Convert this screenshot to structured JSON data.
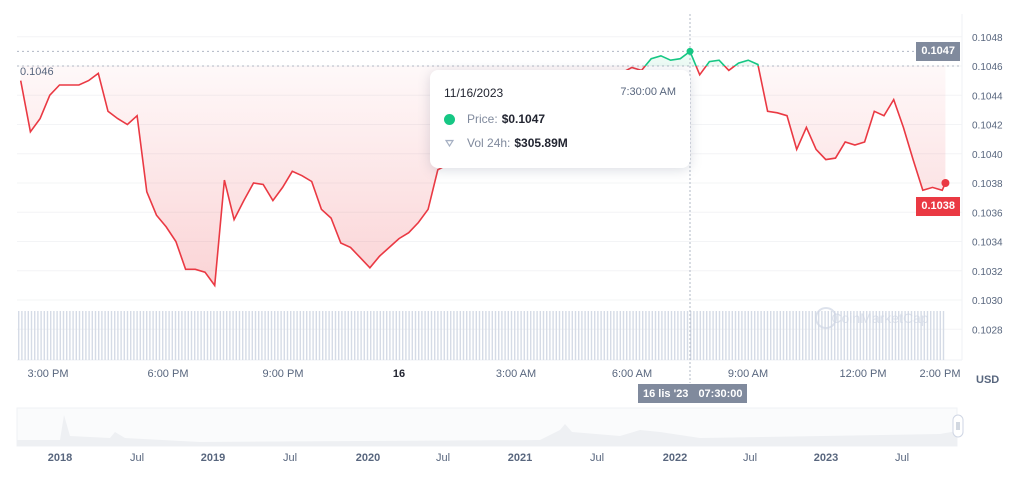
{
  "colors": {
    "up": "#16c784",
    "down": "#ea3943",
    "badge_gray": "#808a9d",
    "volume": "#cfd6e4"
  },
  "tooltip": {
    "date": "11/16/2023",
    "time": "7:30:00 AM",
    "price_label": "Price:",
    "price": "$0.1047",
    "vol_label": "Vol 24h:",
    "vol": "$305.89M",
    "price_icon": "green-dot-icon",
    "vol_icon": "volume-shield-icon"
  },
  "crosshair": {
    "date_badge": "16 lis '23",
    "time_badge": "07:30:00",
    "price_badge": "0.1047"
  },
  "current_price_badge": "0.1038",
  "baseline_label": "0.1046",
  "currency": "USD",
  "watermark": "CoinMarketCap",
  "x_ticks": [
    "3:00 PM",
    "6:00 PM",
    "9:00 PM",
    "16",
    "3:00 AM",
    "6:00 AM",
    "9:00 AM",
    "12:00 PM",
    "2:00 PM"
  ],
  "y_ticks": [
    "0.1048",
    "0.1046",
    "0.1044",
    "0.1042",
    "0.1040",
    "0.1038",
    "0.1036",
    "0.1034",
    "0.1032",
    "0.1030",
    "0.1028"
  ],
  "navigator_ticks": [
    "2018",
    "Jul",
    "2019",
    "Jul",
    "2020",
    "Jul",
    "2021",
    "Jul",
    "2022",
    "Jul",
    "2023",
    "Jul"
  ],
  "chart_data": {
    "type": "line",
    "baseline": 0.1046,
    "ylim": [
      0.1027,
      0.1049
    ],
    "points": [
      [
        "11/15 14:15",
        0.1045
      ],
      [
        "11/15 14:30",
        0.10415
      ],
      [
        "11/15 14:45",
        0.10424
      ],
      [
        "11/15 15:00",
        0.1044
      ],
      [
        "11/15 15:15",
        0.10447
      ],
      [
        "11/15 15:30",
        0.10447
      ],
      [
        "11/15 15:45",
        0.10447
      ],
      [
        "11/15 16:00",
        0.1045
      ],
      [
        "11/15 16:15",
        0.10455
      ],
      [
        "11/15 16:30",
        0.10429
      ],
      [
        "11/15 16:45",
        0.10424
      ],
      [
        "11/15 17:00",
        0.1042
      ],
      [
        "11/15 17:15",
        0.10426
      ],
      [
        "11/15 17:30",
        0.10374
      ],
      [
        "11/15 17:45",
        0.10358
      ],
      [
        "11/15 18:00",
        0.1035
      ],
      [
        "11/15 18:15",
        0.1034
      ],
      [
        "11/15 18:30",
        0.10321
      ],
      [
        "11/15 18:45",
        0.10321
      ],
      [
        "11/15 19:00",
        0.10319
      ],
      [
        "11/15 19:15",
        0.1031
      ],
      [
        "11/15 19:30",
        0.10382
      ],
      [
        "11/15 19:45",
        0.10355
      ],
      [
        "11/15 20:00",
        0.10368
      ],
      [
        "11/15 20:15",
        0.1038
      ],
      [
        "11/15 20:30",
        0.10379
      ],
      [
        "11/15 20:45",
        0.10368
      ],
      [
        "11/15 21:00",
        0.10377
      ],
      [
        "11/15 21:15",
        0.10388
      ],
      [
        "11/15 21:30",
        0.10385
      ],
      [
        "11/15 21:45",
        0.10381
      ],
      [
        "11/15 22:00",
        0.10362
      ],
      [
        "11/15 22:15",
        0.10356
      ],
      [
        "11/15 22:30",
        0.10339
      ],
      [
        "11/15 22:45",
        0.10336
      ],
      [
        "11/15 23:00",
        0.10329
      ],
      [
        "11/15 23:15",
        0.10322
      ],
      [
        "11/15 23:30",
        0.1033
      ],
      [
        "11/15 23:45",
        0.10336
      ],
      [
        "11/16 00:00",
        0.10342
      ],
      [
        "11/16 00:15",
        0.10346
      ],
      [
        "11/16 00:30",
        0.10353
      ],
      [
        "11/16 00:45",
        0.10362
      ],
      [
        "11/16 01:00",
        0.10389
      ],
      [
        "11/16 06:00",
        0.10459
      ],
      [
        "11/16 06:15",
        0.10457
      ],
      [
        "11/16 06:30",
        0.10465
      ],
      [
        "11/16 06:45",
        0.10467
      ],
      [
        "11/16 07:00",
        0.10464
      ],
      [
        "11/16 07:15",
        0.10465
      ],
      [
        "11/16 07:30",
        0.1047
      ],
      [
        "11/16 07:45",
        0.10454
      ],
      [
        "11/16 08:00",
        0.10463
      ],
      [
        "11/16 08:15",
        0.10464
      ],
      [
        "11/16 08:30",
        0.10457
      ],
      [
        "11/16 08:45",
        0.10462
      ],
      [
        "11/16 09:00",
        0.10464
      ],
      [
        "11/16 09:15",
        0.10461
      ],
      [
        "11/16 09:30",
        0.10429
      ],
      [
        "11/16 09:45",
        0.10428
      ],
      [
        "11/16 10:00",
        0.10426
      ],
      [
        "11/16 10:15",
        0.10403
      ],
      [
        "11/16 10:30",
        0.10418
      ],
      [
        "11/16 10:45",
        0.10403
      ],
      [
        "11/16 11:00",
        0.10396
      ],
      [
        "11/16 11:15",
        0.10397
      ],
      [
        "11/16 11:30",
        0.10408
      ],
      [
        "11/16 11:45",
        0.10406
      ],
      [
        "11/16 12:00",
        0.10408
      ],
      [
        "11/16 12:15",
        0.10429
      ],
      [
        "11/16 12:30",
        0.10426
      ],
      [
        "11/16 12:45",
        0.10437
      ],
      [
        "11/16 13:00",
        0.10418
      ],
      [
        "11/16 13:15",
        0.10396
      ],
      [
        "11/16 13:30",
        0.10375
      ],
      [
        "11/16 13:45",
        0.10377
      ],
      [
        "11/16 14:00",
        0.10375
      ],
      [
        "11/16 14:05",
        0.1038
      ]
    ]
  }
}
